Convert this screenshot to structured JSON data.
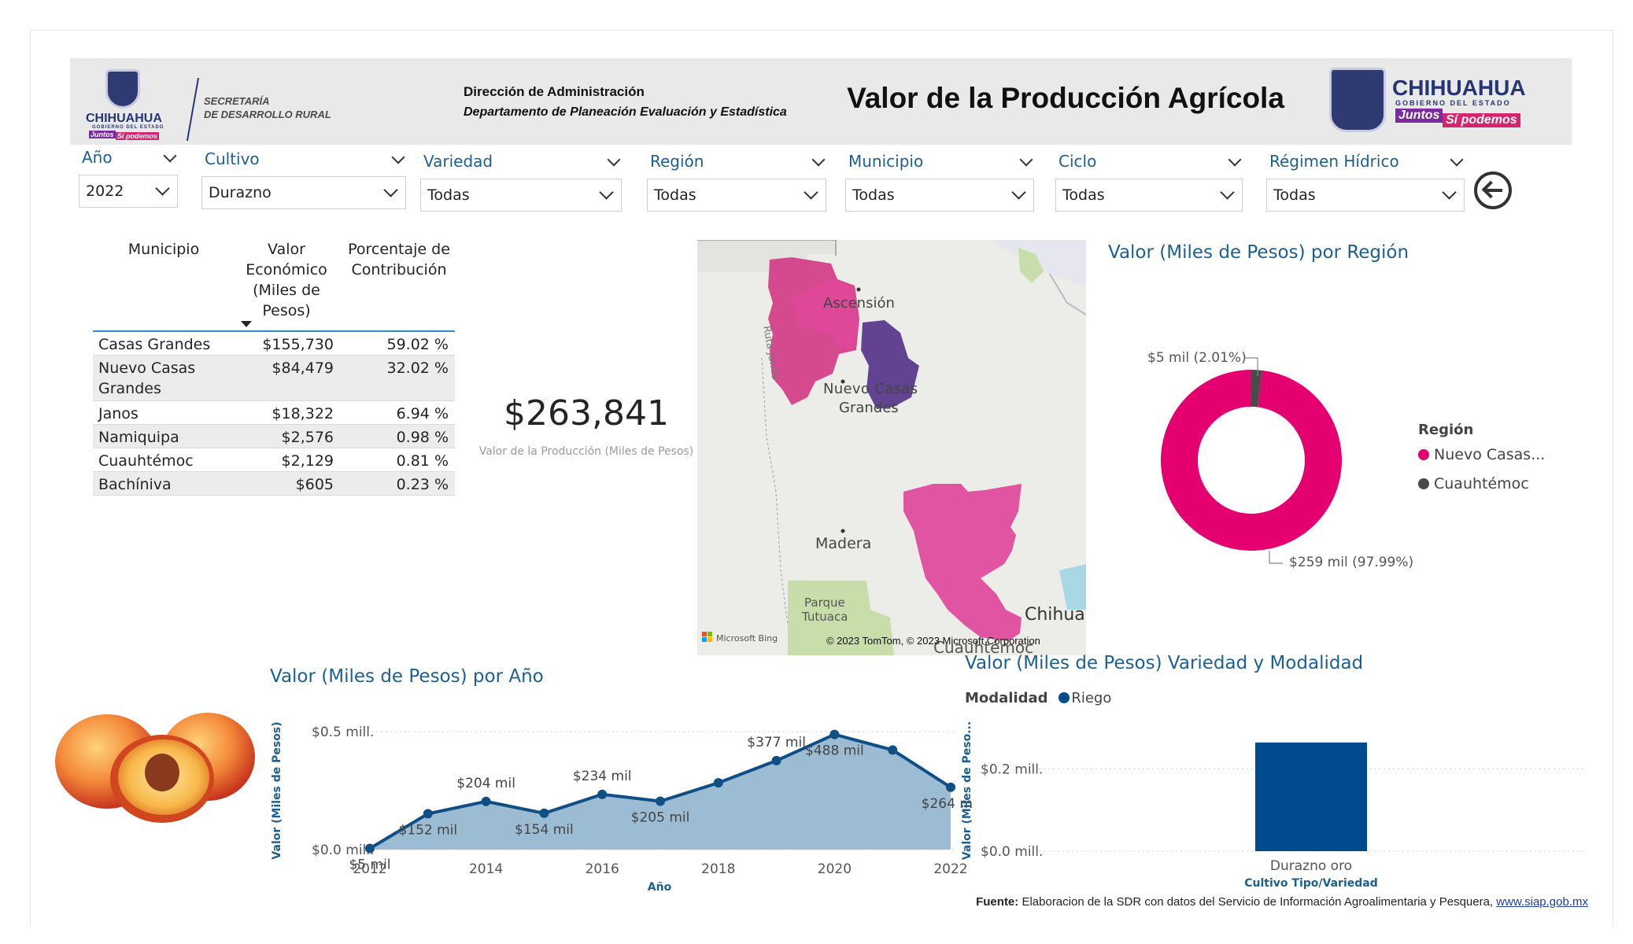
{
  "header": {
    "logo_left": {
      "brand": "CHIHUAHUA",
      "sub": "GOBIERNO DEL ESTADO",
      "badge1": "Juntos",
      "badge2": "Sí podemos"
    },
    "secretaria_line1": "SECRETARÍA",
    "secretaria_line2": "DE DESARROLLO RURAL",
    "dept_line1": "Dirección de Administración",
    "dept_line2": "Departamento de Planeación Evaluación y Estadística",
    "title": "Valor de la Producción Agrícola",
    "logo_right": {
      "brand": "CHIHUAHUA",
      "sub": "GOBIERNO DEL ESTADO",
      "badge1": "Juntos",
      "badge2": "Sí podemos"
    }
  },
  "filters": [
    {
      "label": "Año",
      "value": "2022"
    },
    {
      "label": "Cultivo",
      "value": "Durazno"
    },
    {
      "label": "Variedad",
      "value": "Todas"
    },
    {
      "label": "Región",
      "value": "Todas"
    },
    {
      "label": "Municipio",
      "value": "Todas"
    },
    {
      "label": "Ciclo",
      "value": "Todas"
    },
    {
      "label": "Régimen Hídrico",
      "value": "Todas"
    }
  ],
  "table": {
    "headers": [
      "Municipio",
      "Valor Económico (Miles de Pesos)",
      "Porcentaje de Contribución"
    ],
    "header_lines": {
      "col2": [
        "Valor",
        "Económico",
        "(Miles de",
        "Pesos)"
      ],
      "col3": [
        "Porcentaje de",
        "Contribución"
      ]
    },
    "rows": [
      {
        "municipio": "Casas Grandes",
        "valor": "$155,730",
        "pct": "59.02 %"
      },
      {
        "municipio": "Nuevo Casas Grandes",
        "valor": "$84,479",
        "pct": "32.02 %"
      },
      {
        "municipio": "Janos",
        "valor": "$18,322",
        "pct": "6.94 %"
      },
      {
        "municipio": "Namiquipa",
        "valor": "$2,576",
        "pct": "0.98 %"
      },
      {
        "municipio": "Cuauhtémoc",
        "valor": "$2,129",
        "pct": "0.81 %"
      },
      {
        "municipio": "Bachíniva",
        "valor": "$605",
        "pct": "0.23 %"
      }
    ]
  },
  "kpi": {
    "value": "$263,841",
    "label": "Valor de la Producción (Miles de Pesos)"
  },
  "map": {
    "places": [
      "Ascensión",
      "Nuevo Casas Grandes",
      "Madera",
      "Parque Tutuaca",
      "Chihua",
      "Cuauhtémoc"
    ],
    "road": "Ruta Janos",
    "attribution_bing": "Microsoft Bing",
    "attribution": "© 2023 TomTom, © 2023 Microsoft Corporation",
    "colors": {
      "dark": "#5b3a8c",
      "pink": "#e0469b",
      "magenta": "#d23c86",
      "land": "#ecece8",
      "park": "#c7deaa"
    }
  },
  "donut": {
    "title": "Valor (Miles de Pesos) por Región",
    "legend_title": "Región",
    "legend": [
      {
        "name": "Nuevo Casas...",
        "color": "#e5006f"
      },
      {
        "name": "Cuauhtémoc",
        "color": "#4a4a4a"
      }
    ],
    "labels": {
      "big": "$259 mil (97.99%)",
      "small": "$5 mil (2.01%)"
    },
    "chart_data": {
      "type": "pie",
      "categories": [
        "Nuevo Casas Grandes",
        "Cuauhtémoc"
      ],
      "values": [
        259,
        5
      ],
      "percent": [
        97.99,
        2.01
      ]
    }
  },
  "line_chart": {
    "title": "Valor (Miles de Pesos) por Año",
    "xlabel": "Año",
    "ylabel": "Valor (Miles de Pesos)",
    "y_ticks": [
      "$0.0 mill.",
      "$0.5 mill."
    ],
    "x_ticks": [
      "2012",
      "2014",
      "2016",
      "2018",
      "2020",
      "2022"
    ],
    "point_labels": [
      {
        "year": 2012,
        "text": "$5 mil",
        "pos": "below"
      },
      {
        "year": 2013,
        "text": "$152 mil",
        "pos": "below"
      },
      {
        "year": 2014,
        "text": "$204 mil",
        "pos": "above"
      },
      {
        "year": 2015,
        "text": "$154 mil",
        "pos": "below"
      },
      {
        "year": 2016,
        "text": "$234 mil",
        "pos": "above"
      },
      {
        "year": 2017,
        "text": "$205 mil",
        "pos": "below"
      },
      {
        "year": 2019,
        "text": "$377 mil",
        "pos": "above"
      },
      {
        "year": 2020,
        "text": "$488 mil",
        "pos": "below"
      },
      {
        "year": 2022,
        "text": "$264 mil",
        "pos": "below"
      }
    ],
    "colors": {
      "line": "#0f4f86",
      "area": "#9cbcd4"
    }
  },
  "chart_data": [
    {
      "type": "area",
      "title": "Valor (Miles de Pesos) por Año",
      "xlabel": "Año",
      "ylabel": "Valor (Miles de Pesos)",
      "x": [
        2012,
        2013,
        2014,
        2015,
        2016,
        2017,
        2018,
        2019,
        2020,
        2021,
        2022
      ],
      "values": [
        5,
        152,
        204,
        154,
        234,
        205,
        283,
        377,
        488,
        422,
        264
      ],
      "ylim": [
        0,
        500
      ]
    },
    {
      "type": "bar",
      "title": "Valor (Miles de Pesos) Variedad y Modalidad",
      "xlabel": "Cultivo Tipo/Variedad",
      "ylabel": "Valor (Miles de Pesos)",
      "categories": [
        "Durazno oro"
      ],
      "series": [
        {
          "name": "Riego",
          "values": [
            264
          ]
        }
      ],
      "ylim": [
        0,
        300
      ]
    }
  ],
  "bar_chart": {
    "title": "Valor (Miles de Pesos) Variedad y Modalidad",
    "legend_title": "Modalidad",
    "legend": [
      {
        "name": "Riego",
        "color": "#004b8d"
      }
    ],
    "xlabel": "Cultivo Tipo/Variedad",
    "ylabel": "Valor (Miles de Peso...",
    "y_ticks": [
      "$0.0 mill.",
      "$0.2 mill."
    ],
    "category": "Durazno oro"
  },
  "source": {
    "label": "Fuente:",
    "text": " Elaboracion de la SDR con datos del Servicio de Información Agroalimentaria y Pesquera, ",
    "link": "www.siap.gob.mx"
  }
}
